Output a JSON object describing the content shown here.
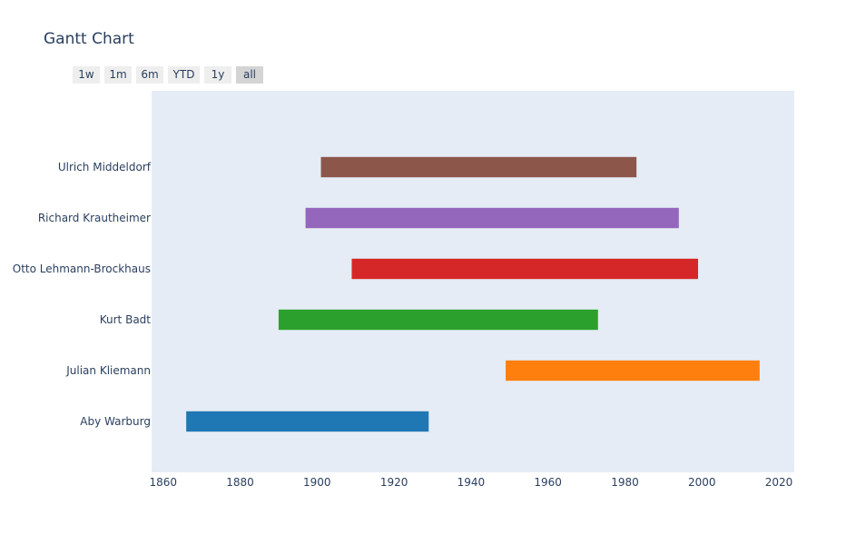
{
  "title": "Gantt Chart",
  "range_selector": {
    "buttons": [
      "1w",
      "1m",
      "6m",
      "YTD",
      "1y",
      "all"
    ],
    "active": "all"
  },
  "chart_data": {
    "type": "gantt",
    "title": "Gantt Chart",
    "xlabel": "",
    "ylabel": "",
    "x_range": [
      1857,
      2024
    ],
    "x_ticks": [
      1860,
      1880,
      1900,
      1920,
      1940,
      1960,
      1980,
      2000,
      2020
    ],
    "y_categories": [
      "Aby Warburg",
      "Julian Kliemann",
      "Kurt Badt",
      "Otto Lehmann-Brockhaus",
      "Richard Krautheimer",
      "Ulrich Middeldorf"
    ],
    "tasks": [
      {
        "task": "Aby Warburg",
        "start": 1866,
        "finish": 1929,
        "color": "#1f77b4"
      },
      {
        "task": "Julian Kliemann",
        "start": 1949,
        "finish": 2015,
        "color": "#ff7f0e"
      },
      {
        "task": "Kurt Badt",
        "start": 1890,
        "finish": 1973,
        "color": "#2ca02c"
      },
      {
        "task": "Otto Lehmann-Brockhaus",
        "start": 1909,
        "finish": 1999,
        "color": "#d62728"
      },
      {
        "task": "Richard Krautheimer",
        "start": 1897,
        "finish": 1994,
        "color": "#9467bd"
      },
      {
        "task": "Ulrich Middeldorf",
        "start": 1901,
        "finish": 1983,
        "color": "#8c564b"
      }
    ],
    "grid": false,
    "plot_background": "#e5ecf6",
    "legend": "none"
  }
}
